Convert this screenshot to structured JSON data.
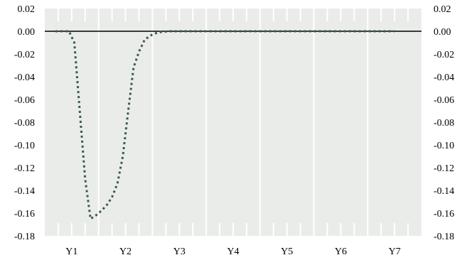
{
  "chart_data": {
    "type": "line",
    "title": "",
    "xlabel": "",
    "ylabel": "",
    "categories": [
      "Y1",
      "Y2",
      "Y3",
      "Y4",
      "Y5",
      "Y6",
      "Y7"
    ],
    "ylim": [
      -0.18,
      0.02
    ],
    "y_ticks": [
      "0.02",
      "0.00",
      "-0.02",
      "-0.04",
      "-0.06",
      "-0.08",
      "-0.10",
      "-0.12",
      "-0.14",
      "-0.16",
      "-0.18"
    ],
    "y_tick_values": [
      0.02,
      0.0,
      -0.02,
      -0.04,
      -0.06,
      -0.08,
      -0.1,
      -0.12,
      -0.14,
      -0.16,
      -0.18
    ],
    "grid": true,
    "zero_line": true,
    "legend": "none",
    "series": [
      {
        "style": "dotted",
        "color": "#3a5a4a",
        "x": [
          0.7,
          0.95,
          1.05,
          1.15,
          1.25,
          1.35,
          1.45,
          1.55,
          1.65,
          1.75,
          1.85,
          1.95,
          2.05,
          2.15,
          2.25,
          2.35,
          2.45,
          2.6,
          2.8,
          3.0,
          3.5,
          4.0,
          4.5,
          5.0,
          5.5,
          6.0,
          6.5,
          7.0
        ],
        "values": [
          0.0,
          0.0,
          -0.01,
          -0.07,
          -0.13,
          -0.165,
          -0.162,
          -0.158,
          -0.153,
          -0.146,
          -0.134,
          -0.11,
          -0.07,
          -0.032,
          -0.018,
          -0.008,
          -0.004,
          -0.001,
          0.0,
          0.0,
          0.0,
          0.0,
          0.0,
          0.0,
          0.0,
          0.0,
          0.0,
          0.0
        ]
      }
    ],
    "colors": {
      "plot_background": "#eaecea",
      "grid": "#ffffff",
      "zero_line": "#000000",
      "series": "#3a5a4a"
    }
  }
}
